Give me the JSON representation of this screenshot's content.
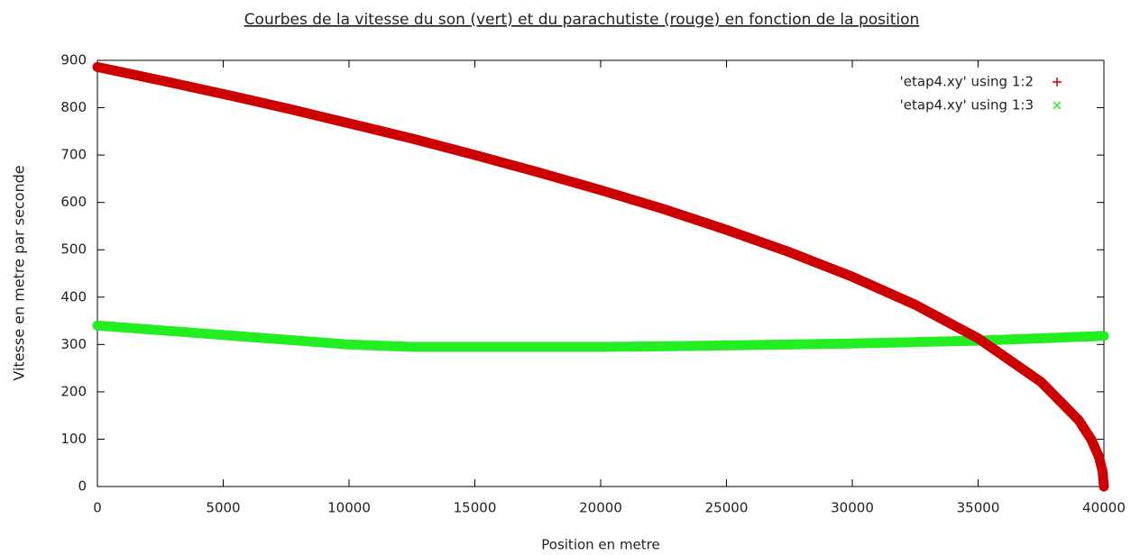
{
  "chart_data": {
    "type": "line",
    "title": "Courbes de la vitesse du son (vert) et du parachutiste (rouge) en fonction de la position",
    "x_label": "Position en metre",
    "y_label": "Vitesse en metre par seconde",
    "x": [
      0,
      2500,
      5000,
      7500,
      10000,
      12500,
      15000,
      17500,
      20000,
      22500,
      25000,
      27500,
      30000,
      32500,
      35000,
      37500,
      39000,
      39500,
      39800,
      39950,
      40000
    ],
    "series": [
      {
        "name": "'etap4.xy' using 1:2",
        "color": "#cc0000",
        "values": [
          886,
          858,
          829,
          799,
          767,
          735,
          700,
          664,
          626,
          586,
          542,
          495,
          443,
          384,
          313,
          221,
          140,
          99,
          63,
          31,
          0
        ]
      },
      {
        "name": "'etap4.xy' using 1:3",
        "color": "#22ee22",
        "values": [
          340,
          330,
          320,
          310,
          300,
          295,
          295,
          295,
          295,
          296,
          298,
          300,
          302,
          305,
          308,
          313,
          316,
          317,
          318,
          318,
          318
        ]
      }
    ],
    "xlim": [
      0,
      40000
    ],
    "xticks": [
      0,
      5000,
      10000,
      15000,
      20000,
      25000,
      30000,
      35000,
      40000
    ],
    "ylim": [
      0,
      900
    ],
    "yticks": [
      0,
      100,
      200,
      300,
      400,
      500,
      600,
      700,
      800,
      900
    ],
    "legend": "top-right"
  }
}
